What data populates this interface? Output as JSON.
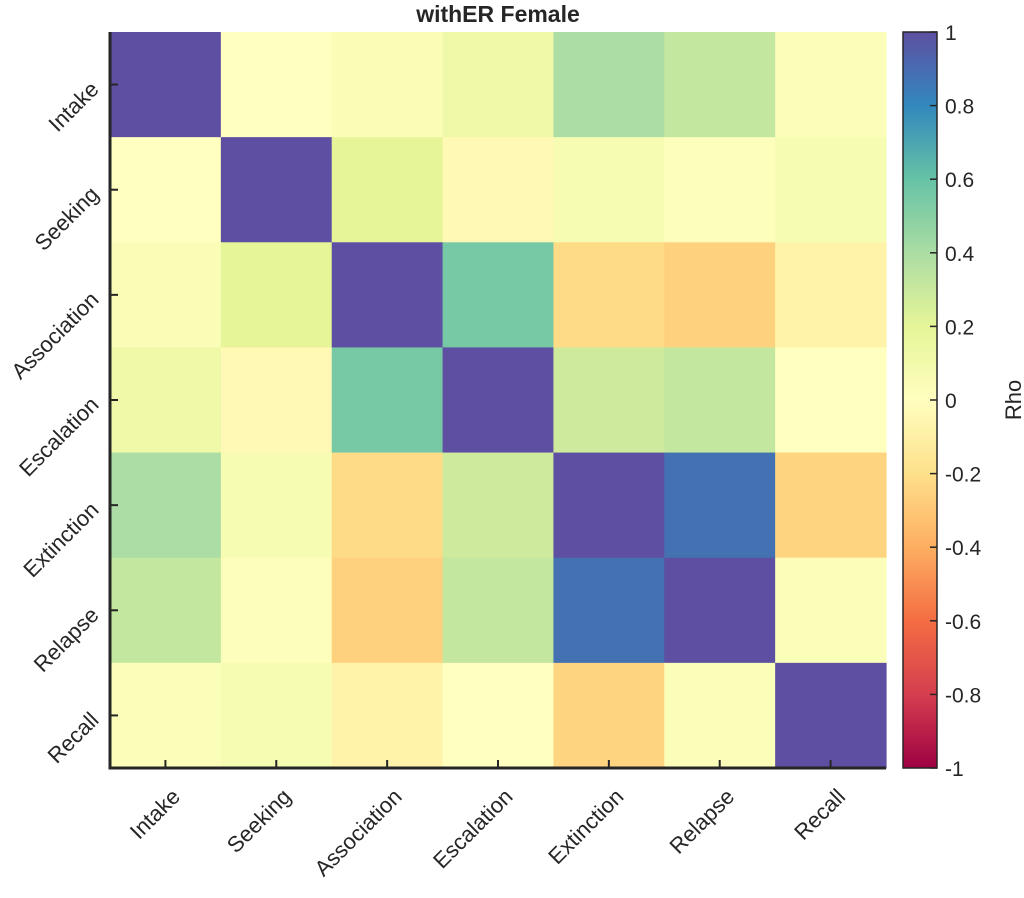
{
  "chart_data": {
    "type": "heatmap",
    "title": "withER Female",
    "xlabel": "",
    "ylabel": "",
    "x_categories": [
      "Intake",
      "Seeking",
      "Association",
      "Escalation",
      "Extinction",
      "Relapse",
      "Recall"
    ],
    "y_categories": [
      "Intake",
      "Seeking",
      "Association",
      "Escalation",
      "Extinction",
      "Relapse",
      "Recall"
    ],
    "values": [
      [
        1.0,
        0.0,
        0.05,
        0.12,
        0.4,
        0.32,
        0.03
      ],
      [
        0.0,
        1.0,
        0.2,
        -0.04,
        0.07,
        0.02,
        0.06
      ],
      [
        0.05,
        0.2,
        1.0,
        0.55,
        -0.22,
        -0.26,
        -0.08
      ],
      [
        0.12,
        -0.04,
        0.55,
        1.0,
        0.28,
        0.32,
        0.0
      ],
      [
        0.4,
        0.07,
        -0.22,
        0.28,
        1.0,
        0.88,
        -0.25
      ],
      [
        0.32,
        0.02,
        -0.26,
        0.32,
        0.88,
        1.0,
        0.03
      ],
      [
        0.03,
        0.06,
        -0.08,
        0.0,
        -0.25,
        0.03,
        1.0
      ]
    ],
    "colorbar": {
      "label": "Rho",
      "range": [
        -1,
        1
      ],
      "ticks": [
        1,
        0.8,
        0.6,
        0.4,
        0.2,
        0,
        -0.2,
        -0.4,
        -0.6,
        -0.8,
        -1
      ],
      "tick_labels": [
        "1",
        "0.8",
        "0.6",
        "0.4",
        "0.2",
        "0",
        "-0.2",
        "-0.4",
        "-0.6",
        "-0.8",
        "-1"
      ],
      "colormap": [
        "#9E0142",
        "#D53E4F",
        "#F46D43",
        "#FDAE61",
        "#FEE08B",
        "#FFFFBF",
        "#E6F598",
        "#ABDDA4",
        "#66C2A5",
        "#3288BD",
        "#5E4FA2"
      ]
    },
    "grid": false
  }
}
